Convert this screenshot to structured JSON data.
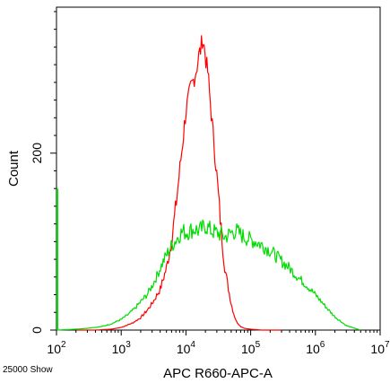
{
  "chart_data": {
    "type": "line",
    "title": "",
    "xlabel": "APC R660-APC-A",
    "ylabel": "Count",
    "x_scale": "log",
    "xlim": [
      100,
      10000000
    ],
    "ylim": [
      0,
      365
    ],
    "x_ticks": [
      {
        "value": 100,
        "base": "10",
        "exp": "2"
      },
      {
        "value": 1000,
        "base": "10",
        "exp": "3"
      },
      {
        "value": 10000,
        "base": "10",
        "exp": "4"
      },
      {
        "value": 100000,
        "base": "10",
        "exp": "5"
      },
      {
        "value": 1000000,
        "base": "10",
        "exp": "6"
      },
      {
        "value": 10000000,
        "base": "10",
        "exp": "7"
      }
    ],
    "y_ticks": [
      {
        "value": 0,
        "label": "0"
      },
      {
        "value": 200,
        "label": "200"
      }
    ],
    "grid": false,
    "legend": "none",
    "corner_note": "25000 Show",
    "series": [
      {
        "color": "#ff0000",
        "x": [
          200,
          400,
          700,
          1000,
          1500,
          2000,
          2500,
          3000,
          4000,
          5000,
          6000,
          7000,
          8000,
          9000,
          10000,
          11000,
          12000,
          13000,
          14000,
          15000,
          16000,
          17000,
          18000,
          19000,
          20000,
          21000,
          22000,
          23000,
          24000,
          25000,
          26000,
          27000,
          28000,
          30000,
          32000,
          34000,
          36000,
          38000,
          40000,
          45000,
          50000,
          55000,
          60000,
          70000,
          80000,
          100000,
          150000,
          300000
        ],
        "y": [
          0,
          0,
          1,
          3,
          8,
          14,
          22,
          30,
          46,
          70,
          100,
          140,
          180,
          215,
          248,
          262,
          275,
          282,
          290,
          300,
          312,
          318,
          330,
          322,
          310,
          298,
          290,
          270,
          255,
          240,
          225,
          215,
          200,
          175,
          150,
          125,
          105,
          85,
          70,
          48,
          30,
          18,
          10,
          4,
          2,
          1,
          0,
          0
        ]
      },
      {
        "color": "#00dd00",
        "x": [
          100,
          200,
          300,
          500,
          700,
          1000,
          1300,
          1600,
          2000,
          2500,
          3000,
          3500,
          4000,
          5000,
          6000,
          7000,
          8000,
          9000,
          10000,
          12000,
          14000,
          16000,
          18000,
          20000,
          25000,
          30000,
          35000,
          40000,
          50000,
          60000,
          70000,
          80000,
          100000,
          120000,
          150000,
          200000,
          300000,
          400000,
          500000,
          700000,
          1000000,
          1500000,
          2000000,
          3000000,
          5000000
        ],
        "y": [
          0,
          1,
          2,
          4,
          7,
          12,
          18,
          24,
          32,
          40,
          50,
          60,
          70,
          85,
          95,
          102,
          108,
          112,
          110,
          113,
          114,
          112,
          115,
          118,
          112,
          110,
          108,
          105,
          110,
          112,
          108,
          105,
          102,
          100,
          96,
          90,
          78,
          70,
          62,
          52,
          40,
          25,
          15,
          5,
          0
        ]
      },
      {
        "color": "#00dd00",
        "x": [
          100,
          100
        ],
        "y": [
          0,
          160
        ]
      }
    ]
  }
}
